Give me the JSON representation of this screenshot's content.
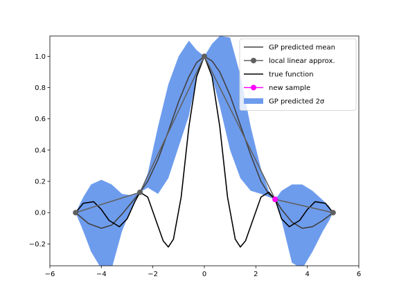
{
  "chart_data": {
    "type": "line",
    "title": "",
    "xlabel": "",
    "ylabel": "",
    "xlim": [
      -6,
      6
    ],
    "ylim": [
      -0.34,
      1.13
    ],
    "xticks": [
      -6,
      -4,
      -2,
      0,
      2,
      4,
      6
    ],
    "xtick_labels": [
      "−6",
      "−4",
      "−2",
      "0",
      "2",
      "4",
      "6"
    ],
    "yticks": [
      -0.2,
      0.0,
      0.2,
      0.4,
      0.6,
      0.8,
      1.0
    ],
    "ytick_labels": [
      "−0.2",
      "0.0",
      "0.2",
      "0.4",
      "0.6",
      "0.8",
      "1.0"
    ],
    "grid": false,
    "legend_position": "top-right",
    "legend": [
      "GP predicted mean",
      "local linear approx.",
      "true function",
      "new sample",
      "GP predicted 2σ"
    ],
    "colors": {
      "gp_mean": "#404040",
      "linear_approx": "#606060",
      "true_function": "#000000",
      "new_sample": "#ff00ff",
      "band": "#6e9ced"
    },
    "series": [
      {
        "name": "GP predicted mean",
        "x": [
          -5,
          -4.5,
          -4,
          -3.6,
          -3.2,
          -2.8,
          -2.5,
          -2.2,
          -1.8,
          -1.4,
          -1.0,
          -0.6,
          -0.3,
          0,
          0.3,
          0.6,
          1.0,
          1.4,
          1.8,
          2.2,
          2.5,
          2.75,
          3.0,
          3.4,
          3.8,
          4.2,
          4.6,
          5
        ],
        "y": [
          0.0,
          -0.07,
          -0.1,
          -0.08,
          -0.01,
          0.07,
          0.13,
          0.2,
          0.34,
          0.52,
          0.71,
          0.87,
          0.96,
          1.0,
          0.97,
          0.9,
          0.75,
          0.56,
          0.37,
          0.2,
          0.12,
          0.085,
          0.02,
          -0.06,
          -0.1,
          -0.09,
          -0.05,
          0.0
        ]
      },
      {
        "name": "local linear approx.",
        "x": [
          -5,
          -2.5,
          0,
          2.75,
          5
        ],
        "y": [
          0.0,
          0.13,
          1.0,
          0.085,
          0.0
        ]
      },
      {
        "name": "true function",
        "x": [
          -5,
          -4.7,
          -4.3,
          -4.0,
          -3.7,
          -3.3,
          -3.0,
          -2.7,
          -2.5,
          -2.2,
          -1.9,
          -1.6,
          -1.4,
          -1.2,
          -0.9,
          -0.6,
          -0.3,
          0,
          0.3,
          0.6,
          0.9,
          1.2,
          1.4,
          1.6,
          1.9,
          2.2,
          2.5,
          2.75,
          3.0,
          3.3,
          3.7,
          4.0,
          4.3,
          4.7,
          5
        ],
        "y": [
          0.0,
          0.06,
          0.07,
          0.02,
          -0.05,
          -0.09,
          -0.04,
          0.07,
          0.13,
          0.1,
          -0.04,
          -0.18,
          -0.22,
          -0.17,
          0.1,
          0.55,
          0.87,
          1.0,
          0.87,
          0.55,
          0.1,
          -0.17,
          -0.22,
          -0.18,
          -0.04,
          0.1,
          0.13,
          0.085,
          -0.04,
          -0.09,
          -0.05,
          0.02,
          0.07,
          0.06,
          0.0
        ]
      },
      {
        "name": "new sample",
        "x": [
          2.75
        ],
        "y": [
          0.085
        ]
      }
    ],
    "band": {
      "name": "GP predicted 2σ",
      "x": [
        -5,
        -4.7,
        -4.4,
        -4.0,
        -3.6,
        -3.2,
        -2.8,
        -2.5,
        -2.2,
        -1.8,
        -1.4,
        -1.0,
        -0.6,
        -0.3,
        0,
        0.3,
        0.6,
        1.0,
        1.4,
        1.8,
        2.2,
        2.5,
        2.75,
        3.0,
        3.4,
        3.8,
        4.2,
        4.6,
        4.85,
        5
      ],
      "upper": [
        0.0,
        0.1,
        0.18,
        0.21,
        0.18,
        0.12,
        0.11,
        0.13,
        0.25,
        0.55,
        0.82,
        1.0,
        1.1,
        1.04,
        1.0,
        1.08,
        1.13,
        1.12,
        0.88,
        0.55,
        0.28,
        0.14,
        0.085,
        0.14,
        0.18,
        0.18,
        0.14,
        0.08,
        0.04,
        0.0
      ],
      "lower": [
        0.0,
        -0.12,
        -0.25,
        -0.36,
        -0.36,
        -0.12,
        0.04,
        0.13,
        0.16,
        0.12,
        0.22,
        0.42,
        0.62,
        0.86,
        1.0,
        0.87,
        0.68,
        0.4,
        0.22,
        0.14,
        0.12,
        0.1,
        0.085,
        -0.05,
        -0.32,
        -0.36,
        -0.25,
        -0.12,
        -0.05,
        0.0
      ]
    }
  }
}
